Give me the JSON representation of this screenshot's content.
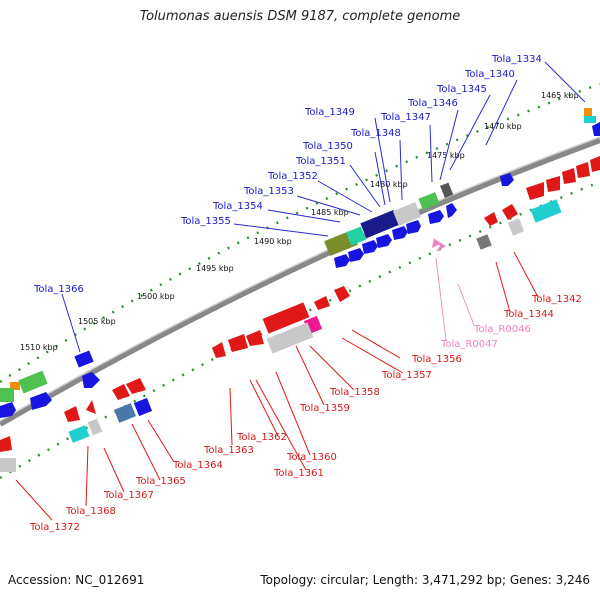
{
  "title": "Tolumonas auensis DSM 9187, complete genome",
  "accession_text": "Accession: NC_012691",
  "topology_text": "Topology: circular; Length: 3,471,292 bp; Genes: 3,246",
  "colors": {
    "top_label": "#1a1acc",
    "bottom_label": "#d41a1a",
    "rna_label": "#f080c0",
    "tick_mark": "#2f8f2f",
    "backbone": "#777777"
  },
  "ticks": [
    "1465 kbp",
    "1470 kbp",
    "1475 kbp",
    "1480 kbp",
    "1485 kbp",
    "1490 kbp",
    "1495 kbp",
    "1500 kbp",
    "1505 kbp",
    "1510 kbp"
  ],
  "top_labels": [
    "Tola_1334",
    "Tola_1340",
    "Tola_1345",
    "Tola_1346",
    "Tola_1347",
    "Tola_1348",
    "Tola_1349",
    "Tola_1350",
    "Tola_1351",
    "Tola_1352",
    "Tola_1353",
    "Tola_1354",
    "Tola_1355",
    "Tola_1366"
  ],
  "bottom_labels": [
    "Tola_1342",
    "Tola_1344",
    "Tola_R0046",
    "Tola_R0047",
    "Tola_1356",
    "Tola_1357",
    "Tola_1358",
    "Tola_1359",
    "Tola_1360",
    "Tola_1361",
    "Tola_1362",
    "Tola_1363",
    "Tola_1364",
    "Tola_1365",
    "Tola_1367",
    "Tola_1368",
    "Tola_1372"
  ]
}
